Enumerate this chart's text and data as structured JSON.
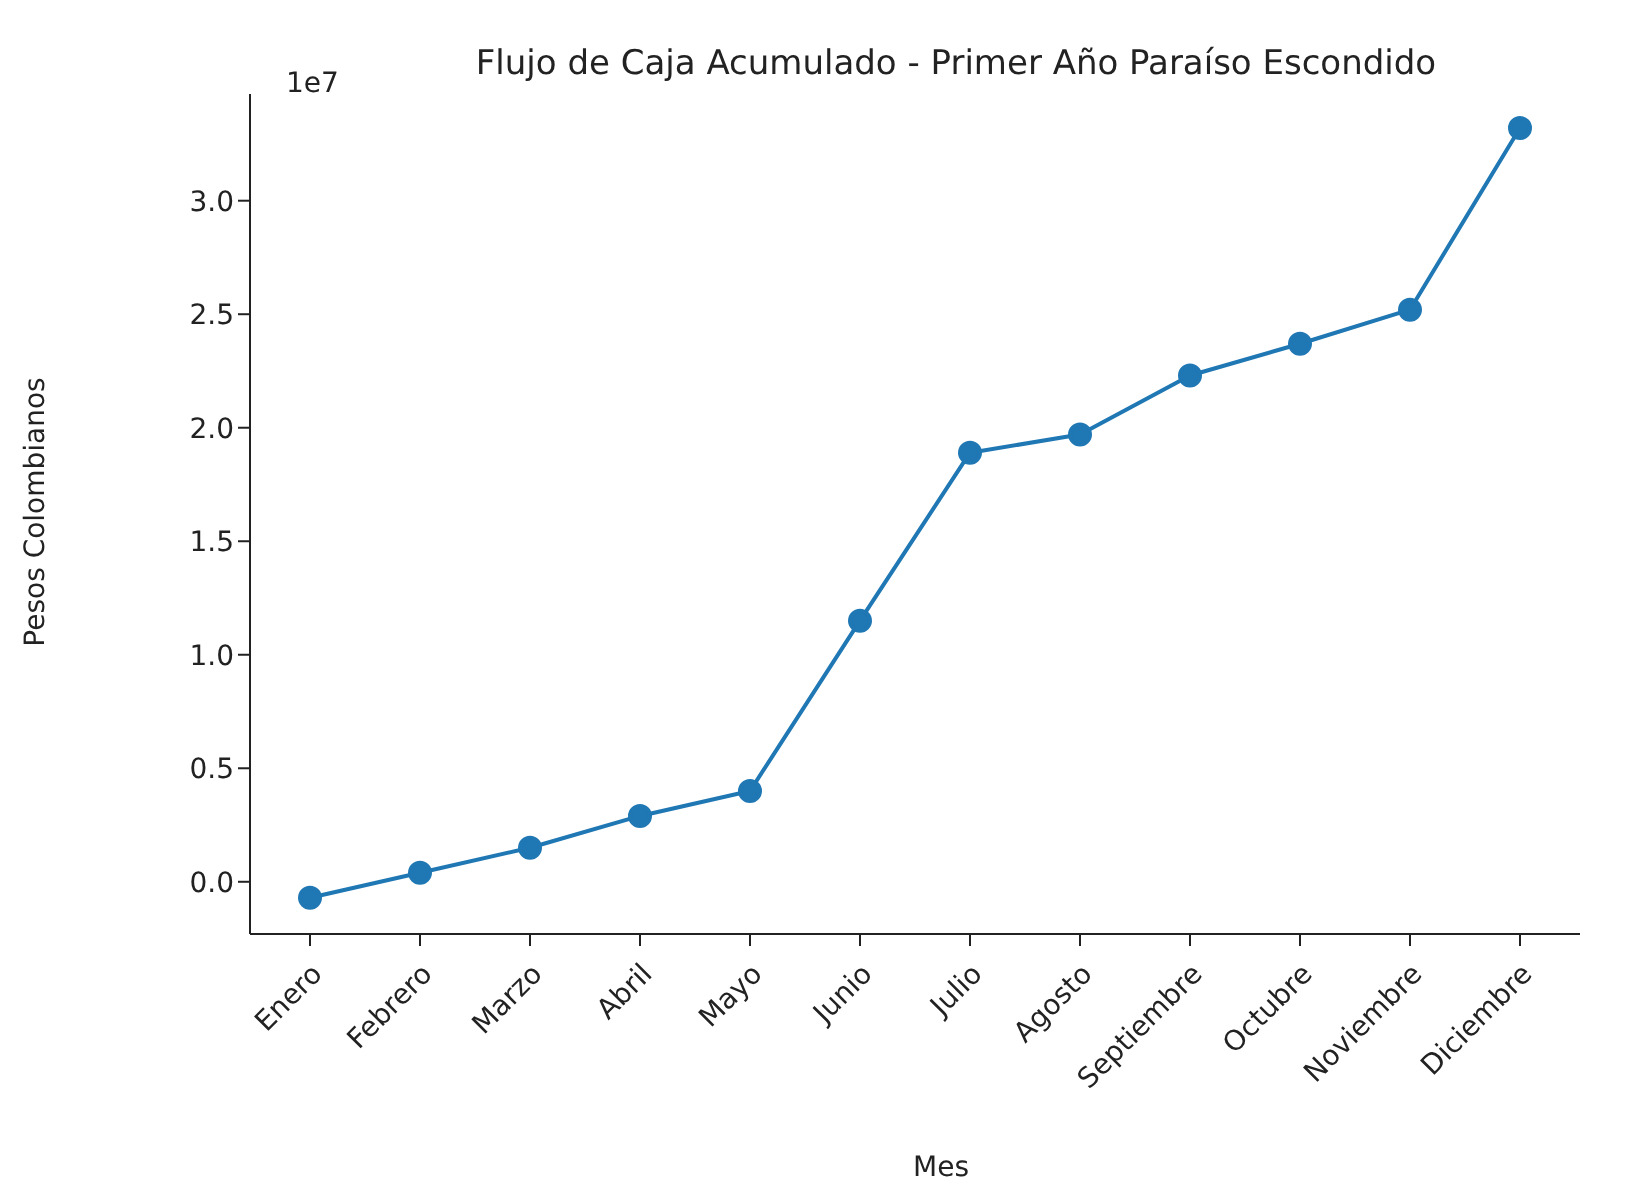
{
  "chart_data": {
    "type": "line",
    "title": "Flujo de Caja Acumulado - Primer Año Paraíso Escondido",
    "xlabel": "Mes",
    "ylabel": "Pesos Colombianos",
    "annotations": [
      "1e7"
    ],
    "categories": [
      "Enero",
      "Febrero",
      "Marzo",
      "Abril",
      "Mayo",
      "Junio",
      "Julio",
      "Agosto",
      "Septiembre",
      "Octubre",
      "Noviembre",
      "Diciembre"
    ],
    "series": [
      {
        "color": "#1f77b4",
        "values": [
          -0.07,
          0.04,
          0.15,
          0.29,
          0.4,
          1.15,
          1.89,
          1.97,
          2.23,
          2.37,
          2.52,
          3.32
        ]
      }
    ],
    "ylim": [
      -0.23,
      3.47
    ],
    "yticks": [
      {
        "value": 0,
        "label": "0.0"
      },
      {
        "value": 0.5,
        "label": "0.5"
      },
      {
        "value": 1,
        "label": "1.0"
      },
      {
        "value": 1.5,
        "label": "1.5"
      },
      {
        "value": 2,
        "label": "2.0"
      },
      {
        "value": 2.5,
        "label": "2.5"
      },
      {
        "value": 3,
        "label": "3.0"
      }
    ],
    "grid": false,
    "legend": false,
    "marker": "circle",
    "line_style": "solid"
  }
}
